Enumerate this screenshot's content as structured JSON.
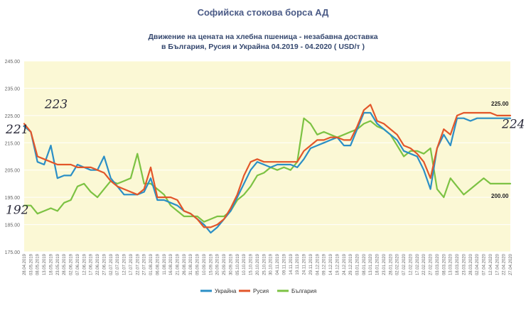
{
  "page_title": "Софийска стокова борса АД",
  "chart_data": {
    "type": "line",
    "title_line1": "Движение на цената на хлебна пшеница - незабавна доставка",
    "title_line2": "в България, Русия и Украйна 04.2019 - 04.2020 ( USD/т )",
    "ylim": [
      175,
      245
    ],
    "yticks": [
      175,
      185,
      195,
      205,
      215,
      225,
      235,
      245
    ],
    "ytick_labels": [
      "175.00",
      "185.00",
      "195.00",
      "205.00",
      "215.00",
      "225.00",
      "235.00",
      "245.00"
    ],
    "x_dates": [
      "28.04.2019",
      "03.05.2019",
      "08.05.2019",
      "13.05.2019",
      "18.05.2019",
      "23.05.2019",
      "28.05.2019",
      "02.06.2019",
      "07.06.2019",
      "12.06.2019",
      "17.06.2019",
      "22.06.2019",
      "27.06.2019",
      "02.07.2019",
      "07.07.2019",
      "12.07.2019",
      "17.07.2019",
      "22.07.2019",
      "27.07.2019",
      "01.08.2019",
      "06.08.2019",
      "11.08.2019",
      "16.08.2019",
      "21.08.2019",
      "26.08.2019",
      "31.08.2019",
      "05.09.2019",
      "10.09.2019",
      "15.09.2019",
      "20.09.2019",
      "25.09.2019",
      "30.09.2019",
      "05.10.2019",
      "10.10.2019",
      "15.10.2019",
      "20.10.2019",
      "25.10.2019",
      "30.10.2019",
      "04.11.2019",
      "09.11.2019",
      "14.11.2019",
      "19.11.2019",
      "24.11.2019",
      "29.11.2019",
      "04.12.2019",
      "09.12.2019",
      "14.12.2019",
      "19.12.2019",
      "24.12.2019",
      "29.12.2019",
      "03.01.2020",
      "08.01.2020",
      "13.01.2020",
      "18.01.2020",
      "23.01.2020",
      "28.01.2020",
      "02.02.2020",
      "07.02.2020",
      "12.02.2020",
      "17.02.2020",
      "22.02.2020",
      "27.02.2020",
      "03.03.2020",
      "08.03.2020",
      "13.03.2020",
      "18.03.2020",
      "23.03.2020",
      "28.03.2020",
      "02.04.2020",
      "07.04.2020",
      "12.04.2020",
      "17.04.2020",
      "22.04.2020",
      "27.04.2020"
    ],
    "series": [
      {
        "name": "Украйна",
        "color": "#2b8fc6",
        "values": [
          221,
          219,
          208,
          207,
          214,
          202,
          203,
          203,
          207,
          206,
          205,
          205,
          210,
          202,
          199,
          196,
          196,
          196,
          197,
          202,
          194,
          194,
          193,
          192,
          190,
          189,
          187,
          185,
          182,
          184,
          187,
          190,
          195,
          200,
          205,
          208,
          207,
          206,
          207,
          207,
          207,
          206,
          209,
          213,
          214,
          215,
          216,
          217,
          214,
          214,
          220,
          226,
          226,
          222,
          220,
          218,
          216,
          212,
          211,
          210,
          205,
          198,
          213,
          218,
          214,
          224,
          224,
          223,
          224,
          224,
          224,
          224,
          224,
          224
        ]
      },
      {
        "name": "Русия",
        "color": "#e2562a",
        "values": [
          222,
          219,
          210,
          209,
          208,
          207,
          207,
          207,
          206,
          206,
          206,
          205,
          204,
          201,
          199,
          198,
          197,
          196,
          198,
          206,
          195,
          195,
          195,
          194,
          190,
          189,
          187,
          184,
          184,
          185,
          187,
          191,
          196,
          203,
          208,
          209,
          208,
          208,
          208,
          208,
          208,
          208,
          212,
          214,
          216,
          216,
          217,
          217,
          216,
          216,
          221,
          227,
          229,
          223,
          222,
          220,
          218,
          214,
          213,
          211,
          208,
          202,
          213,
          220,
          218,
          225,
          226,
          226,
          226,
          226,
          226,
          225,
          225,
          225
        ]
      },
      {
        "name": "България",
        "color": "#7cc243",
        "values": [
          192,
          192,
          189,
          190,
          191,
          190,
          193,
          194,
          199,
          200,
          197,
          195,
          198,
          201,
          200,
          201,
          202,
          211,
          200,
          200,
          198,
          196,
          192,
          190,
          188,
          188,
          188,
          186,
          187,
          188,
          188,
          190,
          194,
          196,
          199,
          203,
          204,
          206,
          205,
          206,
          205,
          208,
          224,
          222,
          218,
          219,
          218,
          217,
          218,
          219,
          220,
          222,
          223,
          221,
          220,
          218,
          214,
          210,
          212,
          212,
          211,
          213,
          198,
          195,
          202,
          199,
          196,
          198,
          200,
          202,
          200,
          200,
          200,
          200
        ]
      }
    ],
    "annotations": [
      {
        "text": "225.00",
        "x_index": 71,
        "y": 225
      },
      {
        "text": "200.00",
        "x_index": 71,
        "y": 200
      }
    ],
    "handwritten": [
      {
        "text": "223",
        "x_index": 2,
        "y": 223
      },
      {
        "text": "221",
        "x_index": 0,
        "y": 221
      },
      {
        "text": "192",
        "x_index": 0,
        "y": 192
      },
      {
        "text": "224",
        "x_index": 73,
        "y": 224
      }
    ],
    "legend_position": "bottom-center",
    "colors": {
      "plot_background": "#fbf8d5",
      "grid": "#ffffff",
      "axis_text": "#666666"
    }
  }
}
